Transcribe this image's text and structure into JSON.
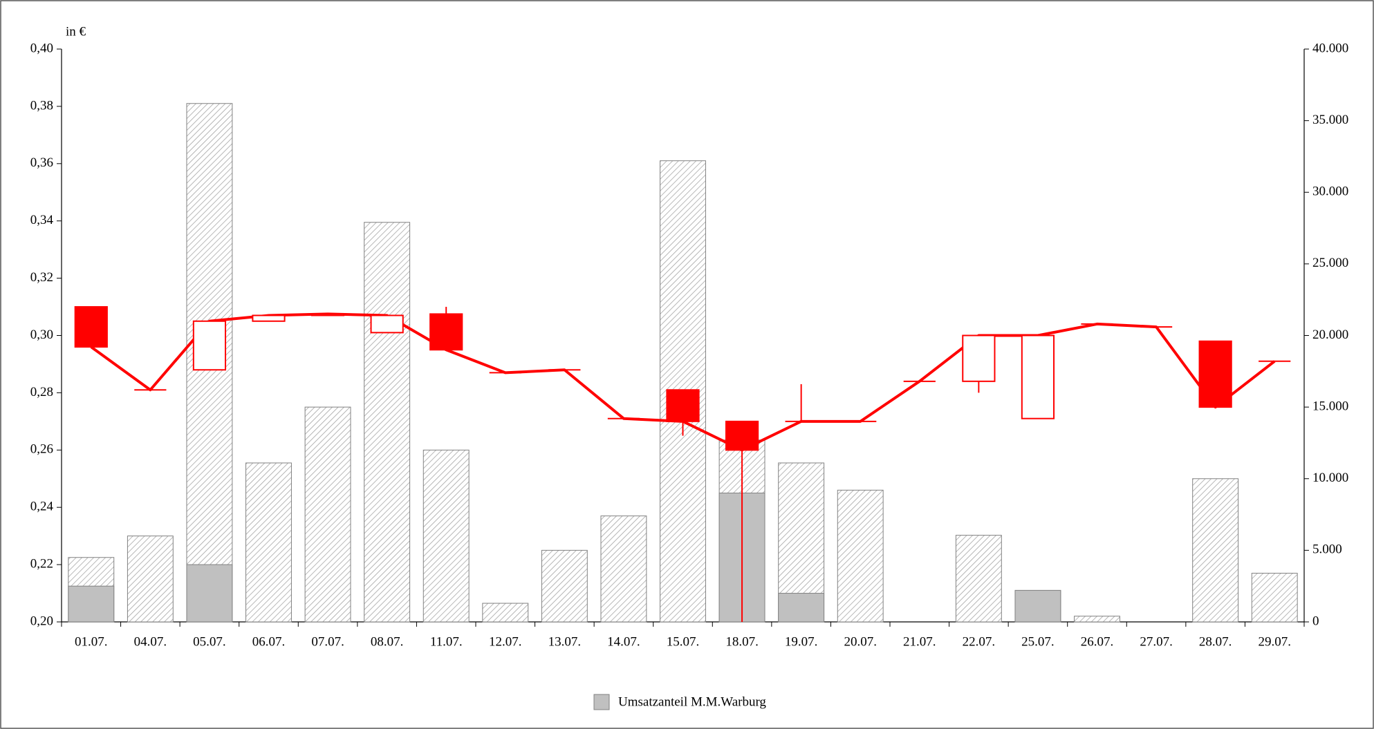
{
  "chart_data": {
    "type": "candlestick",
    "ylabel": "in €",
    "categories": [
      "01.07.",
      "04.07.",
      "05.07.",
      "06.07.",
      "07.07.",
      "08.07.",
      "11.07.",
      "12.07.",
      "13.07.",
      "14.07.",
      "15.07.",
      "18.07.",
      "19.07.",
      "20.07.",
      "21.07.",
      "22.07.",
      "25.07.",
      "26.07.",
      "27.07.",
      "28.07.",
      "29.07."
    ],
    "candles": {
      "color": "#ff0000",
      "open": [
        0.31,
        0.281,
        0.288,
        0.305,
        0.307,
        0.301,
        0.3075,
        0.287,
        0.288,
        0.271,
        0.281,
        0.27,
        0.27,
        0.27,
        0.284,
        0.284,
        0.271,
        0.304,
        0.303,
        0.298,
        0.291
      ],
      "high": [
        0.31,
        0.281,
        0.305,
        0.307,
        0.3075,
        0.307,
        0.31,
        0.287,
        0.288,
        0.271,
        0.281,
        0.27,
        0.283,
        0.27,
        0.284,
        0.3,
        0.3,
        0.304,
        0.303,
        0.298,
        0.291
      ],
      "low": [
        0.296,
        0.281,
        0.288,
        0.305,
        0.307,
        0.301,
        0.295,
        0.287,
        0.288,
        0.271,
        0.265,
        0.2,
        0.27,
        0.27,
        0.284,
        0.28,
        0.271,
        0.304,
        0.303,
        0.275,
        0.291
      ],
      "close": [
        0.296,
        0.281,
        0.305,
        0.307,
        0.3075,
        0.307,
        0.295,
        0.287,
        0.288,
        0.271,
        0.27,
        0.26,
        0.27,
        0.27,
        0.284,
        0.3,
        0.3,
        0.304,
        0.303,
        0.275,
        0.291
      ]
    },
    "series": [
      {
        "axis": "y2",
        "color": "#a0a0a0",
        "pattern": "hatch",
        "values": [
          4500,
          6000,
          36200,
          11100,
          15000,
          27900,
          12000,
          1300,
          5000,
          7400,
          32200,
          12700,
          11100,
          9200,
          0,
          6050,
          2200,
          400,
          0,
          10000,
          3400
        ]
      },
      {
        "name": "Umsatzanteil M.M.Warburg",
        "axis": "y2",
        "color": "#c0c0c0",
        "values": [
          2500,
          0,
          4000,
          0,
          0,
          0,
          0,
          0,
          0,
          0,
          0,
          9000,
          2000,
          0,
          0,
          0,
          2200,
          0,
          0,
          0,
          0
        ]
      }
    ],
    "ylim": [
      0.2,
      0.4
    ],
    "yticks": [
      {
        "value": 0.2,
        "label": "0,20"
      },
      {
        "value": 0.22,
        "label": "0,22"
      },
      {
        "value": 0.24,
        "label": "0,24"
      },
      {
        "value": 0.26,
        "label": "0,26"
      },
      {
        "value": 0.28,
        "label": "0,28"
      },
      {
        "value": 0.3,
        "label": "0,30"
      },
      {
        "value": 0.32,
        "label": "0,32"
      },
      {
        "value": 0.34,
        "label": "0,34"
      },
      {
        "value": 0.36,
        "label": "0,36"
      },
      {
        "value": 0.38,
        "label": "0,38"
      },
      {
        "value": 0.4,
        "label": "0,40"
      }
    ],
    "y2lim": [
      0,
      40000
    ],
    "y2ticks": [
      0,
      {
        "value": 5000,
        "label": "5.000"
      },
      {
        "value": 10000,
        "label": "10.000"
      },
      {
        "value": 15000,
        "label": "15.000"
      },
      {
        "value": 20000,
        "label": "20.000"
      },
      {
        "value": 25000,
        "label": "25.000"
      },
      {
        "value": 30000,
        "label": "30.000"
      },
      {
        "value": 35000,
        "label": "35.000"
      },
      {
        "value": 40000,
        "label": "40.000"
      }
    ],
    "legend": "bottom"
  }
}
